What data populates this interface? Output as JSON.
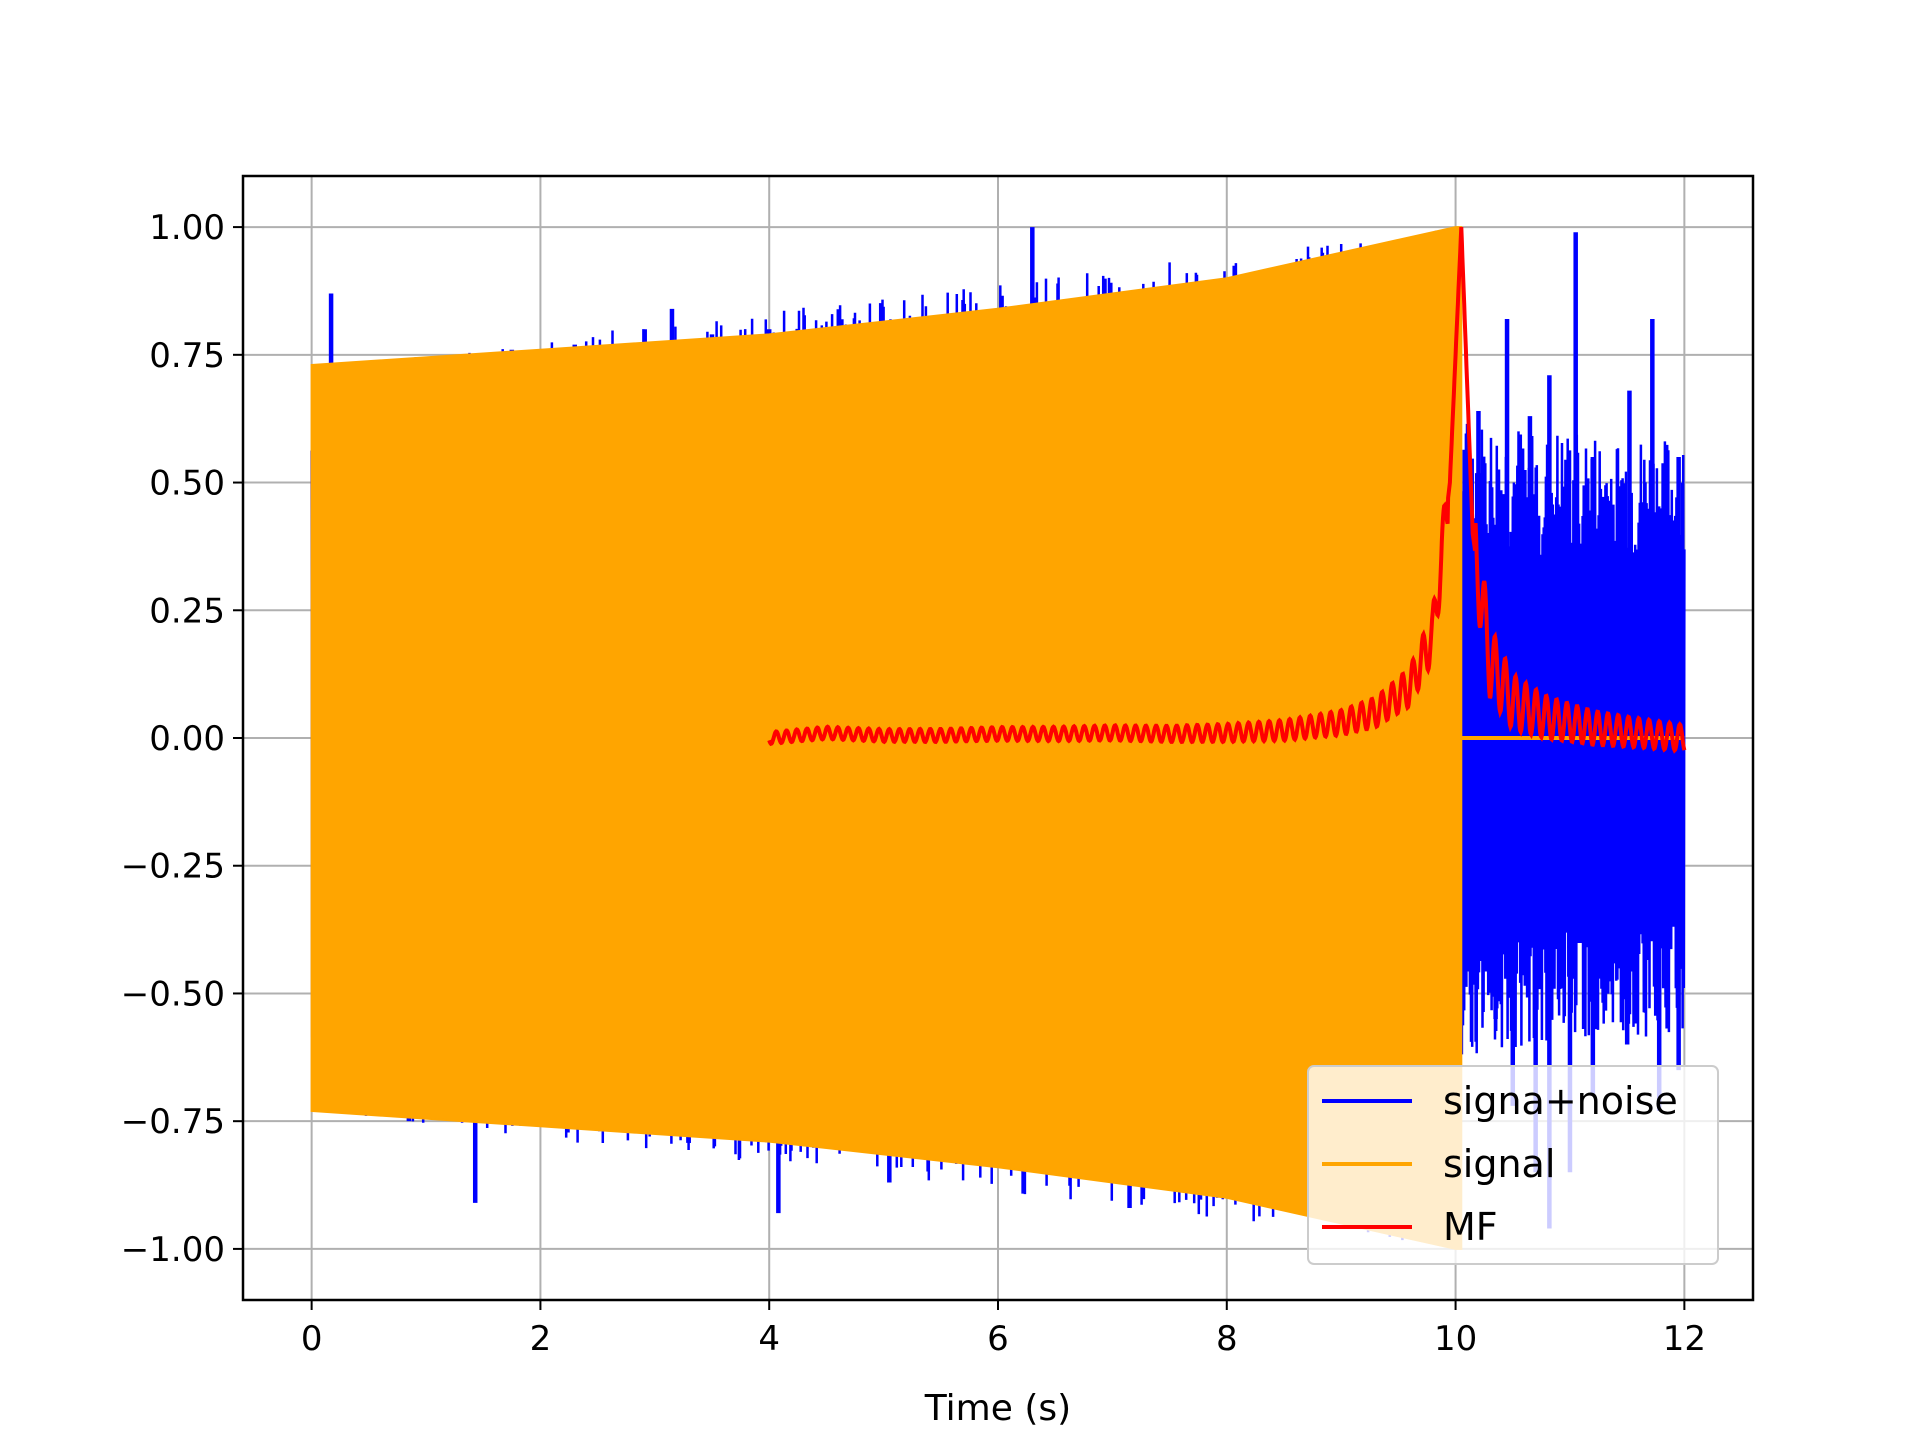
{
  "chart_data": {
    "type": "line",
    "title": "",
    "xlabel": "Time (s)",
    "ylabel": "",
    "xlim": [
      -0.6,
      12.6
    ],
    "ylim": [
      -1.1,
      1.1
    ],
    "xticks": [
      0,
      2,
      4,
      6,
      8,
      10,
      12
    ],
    "xtick_labels": [
      "0",
      "2",
      "4",
      "6",
      "8",
      "10",
      "12"
    ],
    "yticks": [
      1.0,
      0.75,
      0.5,
      0.25,
      0.0,
      -0.25,
      -0.5,
      -0.75,
      -1.0
    ],
    "ytick_labels": [
      "1.00",
      "0.75",
      "0.50",
      "0.25",
      "0.00",
      "−0.25",
      "−0.50",
      "−0.75",
      "−1.00"
    ],
    "grid": true,
    "legend_position": "lower-right",
    "series": [
      {
        "name": "signa+noise",
        "color": "#0000ff",
        "style": "dense oscillation",
        "x_range": [
          0,
          12
        ],
        "envelope": {
          "x": [
            0,
            10.05,
            10.05,
            12
          ],
          "upper": [
            0.73,
            1.0,
            0.62,
            0.58
          ],
          "lower": [
            -0.73,
            -1.0,
            -0.62,
            -0.58
          ]
        },
        "spikes": [
          {
            "x": 0.17,
            "y": 0.87
          },
          {
            "x": 1.75,
            "y": 0.76
          },
          {
            "x": 2.3,
            "y": 0.77
          },
          {
            "x": 3.15,
            "y": 0.84
          },
          {
            "x": 3.5,
            "y": 0.79
          },
          {
            "x": 4.0,
            "y": 0.8
          },
          {
            "x": 6.3,
            "y": 1.0
          },
          {
            "x": 0.85,
            "y": -0.75
          },
          {
            "x": 1.3,
            "y": -0.75
          },
          {
            "x": 1.43,
            "y": -0.91
          },
          {
            "x": 3.12,
            "y": -0.77
          },
          {
            "x": 4.08,
            "y": -0.93
          },
          {
            "x": 5.05,
            "y": -0.87
          },
          {
            "x": 7.15,
            "y": -0.92
          },
          {
            "x": 10.2,
            "y": 0.64
          },
          {
            "x": 10.45,
            "y": 0.82
          },
          {
            "x": 10.65,
            "y": 0.63
          },
          {
            "x": 10.82,
            "y": 0.71
          },
          {
            "x": 11.05,
            "y": 0.99
          },
          {
            "x": 11.2,
            "y": 0.55
          },
          {
            "x": 11.52,
            "y": 0.68
          },
          {
            "x": 11.72,
            "y": 0.82
          },
          {
            "x": 11.95,
            "y": 0.55
          },
          {
            "x": 10.35,
            "y": -0.55
          },
          {
            "x": 10.5,
            "y": -0.72
          },
          {
            "x": 10.7,
            "y": -0.85
          },
          {
            "x": 10.82,
            "y": -0.96
          },
          {
            "x": 11.0,
            "y": -0.85
          },
          {
            "x": 11.2,
            "y": -0.7
          },
          {
            "x": 11.5,
            "y": -0.6
          },
          {
            "x": 11.78,
            "y": -0.73
          },
          {
            "x": 11.95,
            "y": -0.65
          }
        ]
      },
      {
        "name": "signal",
        "color": "#ffa500",
        "style": "dense oscillation (filled envelope)",
        "envelope": {
          "x": [
            0,
            2,
            4,
            6,
            8,
            9,
            10,
            10.05
          ],
          "upper": [
            0.73,
            0.76,
            0.79,
            0.84,
            0.9,
            0.95,
            1.0,
            1.0
          ],
          "lower": [
            -0.73,
            -0.76,
            -0.79,
            -0.84,
            -0.9,
            -0.95,
            -1.0,
            -1.0
          ]
        },
        "baseline_after": {
          "x": [
            10.05,
            12
          ],
          "y": 0.0
        }
      },
      {
        "name": "MF",
        "color": "#ff0000",
        "style": "solid line",
        "x": [
          4.0,
          4.5,
          5.0,
          5.5,
          6.0,
          6.5,
          7.0,
          7.5,
          8.0,
          8.5,
          9.0,
          9.3,
          9.6,
          9.8,
          9.95,
          10.05,
          10.15,
          10.3,
          10.5,
          10.8,
          11.2,
          11.6,
          12.0
        ],
        "y": [
          0.0,
          0.01,
          0.005,
          0.005,
          0.008,
          0.008,
          0.01,
          0.008,
          0.01,
          0.015,
          0.03,
          0.05,
          0.1,
          0.2,
          0.5,
          1.0,
          0.4,
          0.15,
          0.07,
          0.04,
          0.02,
          0.01,
          0.0
        ]
      }
    ]
  }
}
